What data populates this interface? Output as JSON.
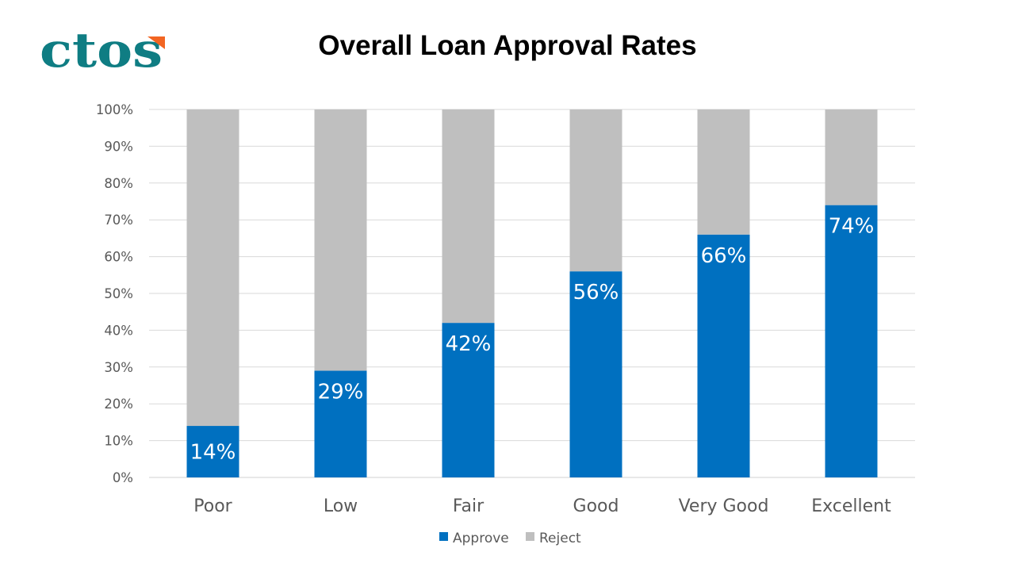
{
  "logo": {
    "text": "ctos",
    "main_color": "#0f7d83",
    "accent_color": "#f26522"
  },
  "chart_data": {
    "type": "bar",
    "stacked": true,
    "title": "Overall Loan Approval Rates",
    "categories": [
      "Poor",
      "Low",
      "Fair",
      "Good",
      "Very Good",
      "Excellent"
    ],
    "series": [
      {
        "name": "Approve",
        "color": "#0070c0",
        "values": [
          14,
          29,
          42,
          56,
          66,
          74
        ],
        "data_labels": [
          "14%",
          "29%",
          "42%",
          "56%",
          "66%",
          "74%"
        ]
      },
      {
        "name": "Reject",
        "color": "#bfbfbf",
        "values": [
          86,
          71,
          58,
          44,
          34,
          26
        ]
      }
    ],
    "y_ticks": [
      "0%",
      "10%",
      "20%",
      "30%",
      "40%",
      "50%",
      "60%",
      "70%",
      "80%",
      "90%",
      "100%"
    ],
    "ylim": [
      0,
      100
    ],
    "xlabel": "",
    "ylabel": "",
    "grid": true,
    "legend_position": "bottom"
  }
}
